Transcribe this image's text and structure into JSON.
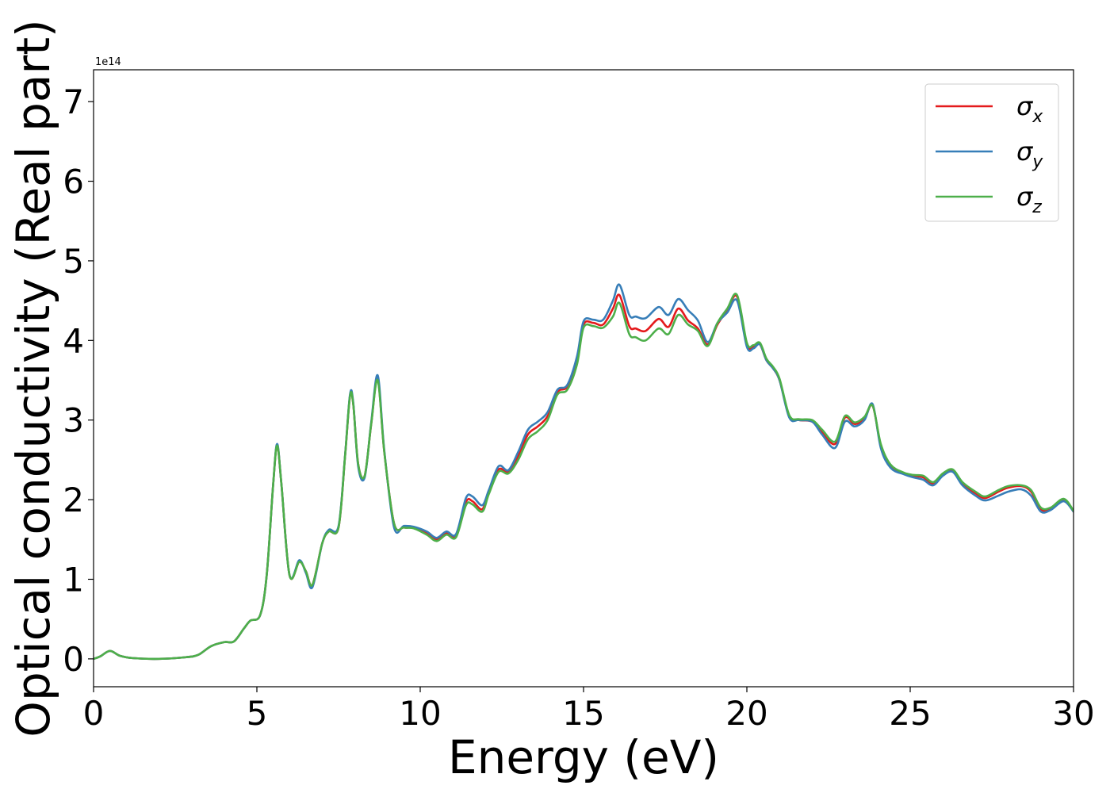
{
  "chart_data": {
    "type": "line",
    "xlabel": "Energy (eV)",
    "ylabel": "Optical conductivity (Real part)",
    "y_offset_label": "1e14",
    "xlim": [
      0,
      30
    ],
    "ylim": [
      -0.35,
      7.4
    ],
    "xticks": [
      0,
      5,
      10,
      15,
      20,
      25,
      30
    ],
    "yticks": [
      0,
      1,
      2,
      3,
      4,
      5,
      6,
      7
    ],
    "grid": false,
    "legend_position": "top-right",
    "x": [
      0,
      0.2,
      0.5,
      0.8,
      1.2,
      2,
      2.8,
      3.2,
      3.6,
      4,
      4.3,
      4.6,
      4.8,
      5.1,
      5.3,
      5.5,
      5.62,
      5.75,
      6,
      6.3,
      6.5,
      6.7,
      7,
      7.2,
      7.5,
      7.7,
      7.85,
      7.95,
      8.1,
      8.3,
      8.5,
      8.7,
      8.9,
      9.2,
      9.5,
      9.8,
      10.2,
      10.5,
      10.8,
      11.1,
      11.4,
      11.6,
      11.9,
      12.1,
      12.4,
      12.7,
      13,
      13.3,
      13.6,
      13.9,
      14.2,
      14.5,
      14.8,
      15,
      15.3,
      15.6,
      15.9,
      16.1,
      16.4,
      16.6,
      16.9,
      17.3,
      17.6,
      17.9,
      18.2,
      18.5,
      18.8,
      19.1,
      19.4,
      19.7,
      20,
      20.2,
      20.4,
      20.6,
      20.8,
      21,
      21.3,
      21.6,
      22,
      22.3,
      22.7,
      23,
      23.3,
      23.6,
      23.85,
      24.1,
      24.4,
      24.8,
      25.1,
      25.4,
      25.7,
      26,
      26.3,
      26.6,
      27,
      27.3,
      27.7,
      28,
      28.4,
      28.7,
      29,
      29.3,
      29.7,
      30
    ],
    "series": [
      {
        "name": "σx",
        "subscript": "x",
        "color": "#e41a1c",
        "values": [
          0,
          0.03,
          0.1,
          0.04,
          0.01,
          0,
          0.02,
          0.05,
          0.16,
          0.21,
          0.22,
          0.38,
          0.48,
          0.55,
          1.05,
          2.2,
          2.68,
          2.2,
          1.05,
          1.22,
          1.1,
          0.93,
          1.45,
          1.6,
          1.65,
          2.55,
          3.3,
          3.2,
          2.45,
          2.3,
          2.95,
          3.52,
          2.6,
          1.7,
          1.65,
          1.65,
          1.58,
          1.5,
          1.58,
          1.55,
          1.97,
          1.98,
          1.88,
          2.1,
          2.38,
          2.35,
          2.55,
          2.82,
          2.92,
          3.05,
          3.35,
          3.42,
          3.75,
          4.2,
          4.22,
          4.2,
          4.4,
          4.57,
          4.18,
          4.15,
          4.12,
          4.27,
          4.17,
          4.4,
          4.25,
          4.15,
          3.95,
          4.2,
          4.38,
          4.55,
          3.95,
          3.92,
          3.95,
          3.75,
          3.65,
          3.5,
          3.05,
          3.0,
          2.98,
          2.85,
          2.7,
          3.03,
          2.95,
          3.02,
          3.18,
          2.68,
          2.42,
          2.33,
          2.3,
          2.28,
          2.2,
          2.32,
          2.37,
          2.2,
          2.08,
          2.02,
          2.1,
          2.15,
          2.17,
          2.1,
          1.88,
          1.88,
          2.0,
          1.85
        ]
      },
      {
        "name": "σy",
        "subscript": "y",
        "color": "#377eb8",
        "values": [
          0,
          0.03,
          0.1,
          0.04,
          0.01,
          0,
          0.02,
          0.05,
          0.16,
          0.21,
          0.22,
          0.38,
          0.48,
          0.55,
          1.05,
          2.2,
          2.7,
          2.2,
          1.05,
          1.24,
          1.08,
          0.9,
          1.45,
          1.62,
          1.67,
          2.56,
          3.32,
          3.22,
          2.42,
          2.28,
          2.97,
          3.56,
          2.62,
          1.65,
          1.67,
          1.66,
          1.6,
          1.52,
          1.6,
          1.57,
          2.02,
          2.04,
          1.93,
          2.12,
          2.42,
          2.37,
          2.6,
          2.88,
          2.98,
          3.1,
          3.38,
          3.44,
          3.8,
          4.24,
          4.26,
          4.26,
          4.5,
          4.7,
          4.32,
          4.3,
          4.28,
          4.42,
          4.32,
          4.52,
          4.38,
          4.25,
          3.98,
          4.22,
          4.35,
          4.5,
          3.92,
          3.9,
          3.95,
          3.75,
          3.65,
          3.5,
          3.03,
          3.0,
          2.98,
          2.82,
          2.65,
          2.98,
          2.92,
          3.0,
          3.2,
          2.65,
          2.4,
          2.32,
          2.28,
          2.25,
          2.18,
          2.3,
          2.35,
          2.18,
          2.05,
          1.99,
          2.05,
          2.1,
          2.13,
          2.05,
          1.85,
          1.87,
          1.98,
          1.85
        ]
      },
      {
        "name": "σz",
        "subscript": "z",
        "color": "#4daf4a",
        "values": [
          0,
          0.03,
          0.1,
          0.04,
          0.01,
          0,
          0.02,
          0.05,
          0.16,
          0.21,
          0.22,
          0.38,
          0.48,
          0.55,
          1.05,
          2.2,
          2.68,
          2.2,
          1.05,
          1.22,
          1.1,
          0.93,
          1.45,
          1.6,
          1.65,
          2.55,
          3.3,
          3.2,
          2.45,
          2.3,
          2.95,
          3.5,
          2.6,
          1.7,
          1.65,
          1.64,
          1.56,
          1.48,
          1.56,
          1.53,
          1.93,
          1.94,
          1.85,
          2.07,
          2.35,
          2.33,
          2.5,
          2.76,
          2.86,
          3.0,
          3.32,
          3.38,
          3.7,
          4.16,
          4.18,
          4.16,
          4.3,
          4.47,
          4.08,
          4.04,
          4.0,
          4.15,
          4.08,
          4.32,
          4.2,
          4.12,
          3.93,
          4.22,
          4.4,
          4.57,
          3.97,
          3.94,
          3.97,
          3.77,
          3.67,
          3.52,
          3.06,
          3.01,
          3.0,
          2.88,
          2.73,
          3.05,
          2.97,
          3.04,
          3.18,
          2.7,
          2.44,
          2.34,
          2.31,
          2.3,
          2.22,
          2.33,
          2.38,
          2.22,
          2.1,
          2.04,
          2.12,
          2.17,
          2.18,
          2.12,
          1.9,
          1.9,
          2.01,
          1.86
        ]
      }
    ]
  }
}
